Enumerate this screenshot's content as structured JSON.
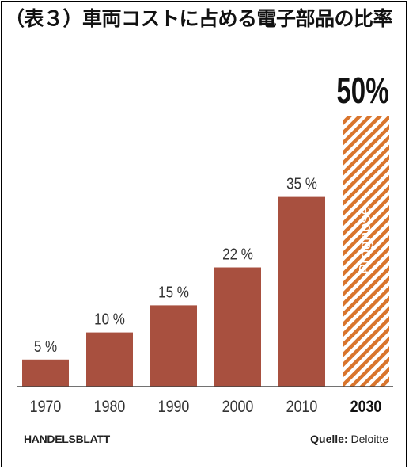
{
  "title": "（表３）車両コストに占める電子部品の比率",
  "publisher": "HANDELSBLATT",
  "source": {
    "label": "Quelle:",
    "value": "Deloitte"
  },
  "colors": {
    "bar": "#a8503f",
    "forecast_stripe": "#d9752d",
    "axis": "#444444",
    "text": "#333333"
  },
  "chart_data": {
    "type": "bar",
    "title": "（表３）車両コストに占める電子部品の比率",
    "xlabel": "",
    "ylabel": "",
    "grid": false,
    "ylim": [
      0,
      50
    ],
    "categories": [
      "1970",
      "1980",
      "1990",
      "2000",
      "2010",
      "2030"
    ],
    "values": [
      5,
      10,
      15,
      22,
      35,
      50
    ],
    "value_labels": [
      "5 %",
      "10 %",
      "15 %",
      "22 %",
      "35 %",
      "50%"
    ],
    "forecast": {
      "category": "2030",
      "label": "Prognose"
    }
  }
}
